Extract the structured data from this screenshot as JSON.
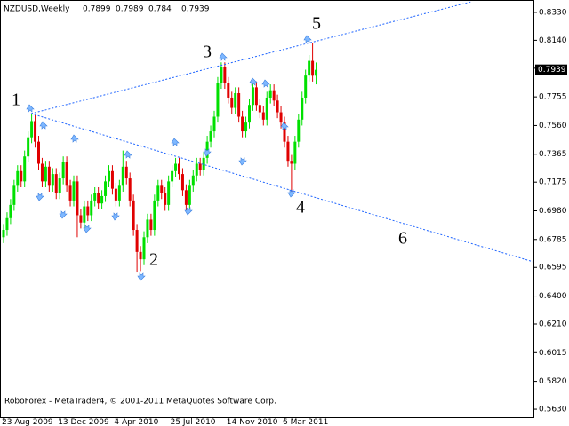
{
  "chart_data": {
    "type": "candlestick",
    "title": "NZDUSD,Weekly",
    "footer": "RoboForex - MetaTrader4, © 2001-2011 MetaQuotes Software Corp.",
    "annotations": [
      "1",
      "2",
      "3",
      "4",
      "5",
      "6"
    ],
    "current_price": 0.7939,
    "up_color": "#00e000",
    "down_color": "#e00000",
    "line_color": "#1e64ff",
    "ylim": [
      0.5576,
      0.8402
    ],
    "yticks": [
      {
        "value": 0.833,
        "label": "0.8330"
      },
      {
        "value": 0.814,
        "label": "0.8140"
      },
      {
        "value": 0.795,
        "label": "0.7950"
      },
      {
        "value": 0.7755,
        "label": "0.7755"
      },
      {
        "value": 0.756,
        "label": "0.7560"
      },
      {
        "value": 0.7365,
        "label": "0.7365"
      },
      {
        "value": 0.7175,
        "label": "0.7175"
      },
      {
        "value": 0.698,
        "label": "0.6980"
      },
      {
        "value": 0.6785,
        "label": "0.6785"
      },
      {
        "value": 0.6595,
        "label": "0.6595"
      },
      {
        "value": 0.64,
        "label": "0.6400"
      },
      {
        "value": 0.621,
        "label": "0.6210"
      },
      {
        "value": 0.6015,
        "label": "0.6015"
      },
      {
        "value": 0.582,
        "label": "0.5820"
      },
      {
        "value": 0.563,
        "label": "0.5630"
      }
    ],
    "categories": [
      "23 Aug 2009",
      null,
      null,
      null,
      null,
      null,
      null,
      null,
      null,
      null,
      null,
      null,
      null,
      null,
      null,
      null,
      "13 Dec 2009",
      null,
      null,
      null,
      null,
      null,
      null,
      null,
      null,
      null,
      null,
      null,
      null,
      null,
      null,
      null,
      "4 Apr 2010",
      null,
      null,
      null,
      null,
      null,
      null,
      null,
      null,
      null,
      null,
      null,
      null,
      null,
      null,
      null,
      "25 Jul 2010",
      null,
      null,
      null,
      null,
      null,
      null,
      null,
      null,
      null,
      null,
      null,
      null,
      null,
      null,
      null,
      "14 Nov 2010",
      null,
      null,
      null,
      null,
      null,
      null,
      null,
      null,
      null,
      null,
      null,
      null,
      null,
      null,
      null,
      "6 Mar 2011",
      null,
      null,
      null,
      null,
      null,
      null,
      null,
      null,
      null
    ],
    "open": [
      0.68,
      0.685,
      0.693,
      0.702,
      0.715,
      0.725,
      0.718,
      0.735,
      0.748,
      0.759,
      0.745,
      0.73,
      0.718,
      0.728,
      0.715,
      0.723,
      0.71,
      0.72,
      0.731,
      0.715,
      0.705,
      0.718,
      0.695,
      0.69,
      0.701,
      0.695,
      0.705,
      0.71,
      0.703,
      0.708,
      0.718,
      0.725,
      0.713,
      0.705,
      0.715,
      0.728,
      0.72,
      0.705,
      0.685,
      0.67,
      0.665,
      0.68,
      0.692,
      0.685,
      0.705,
      0.715,
      0.71,
      0.702,
      0.718,
      0.725,
      0.73,
      0.723,
      0.712,
      0.702,
      0.715,
      0.722,
      0.73,
      0.726,
      0.734,
      0.745,
      0.752,
      0.762,
      0.785,
      0.796,
      0.785,
      0.775,
      0.768,
      0.778,
      0.762,
      0.752,
      0.758,
      0.77,
      0.782,
      0.77,
      0.765,
      0.76,
      0.775,
      0.78,
      0.773,
      0.765,
      0.758,
      0.745,
      0.732,
      0.73,
      0.745,
      0.76,
      0.775,
      0.79,
      0.8,
      0.7899
    ],
    "high": [
      0.689,
      0.697,
      0.706,
      0.719,
      0.729,
      0.729,
      0.739,
      0.752,
      0.764,
      0.763,
      0.749,
      0.734,
      0.732,
      0.732,
      0.727,
      0.727,
      0.724,
      0.735,
      0.735,
      0.719,
      0.722,
      0.722,
      0.699,
      0.705,
      0.705,
      0.709,
      0.714,
      0.714,
      0.712,
      0.722,
      0.729,
      0.729,
      0.717,
      0.719,
      0.739,
      0.732,
      0.724,
      0.709,
      0.689,
      0.674,
      0.684,
      0.696,
      0.696,
      0.709,
      0.719,
      0.719,
      0.714,
      0.722,
      0.729,
      0.734,
      0.734,
      0.727,
      0.716,
      0.719,
      0.726,
      0.734,
      0.734,
      0.738,
      0.749,
      0.756,
      0.766,
      0.789,
      0.799,
      0.799,
      0.789,
      0.779,
      0.782,
      0.782,
      0.766,
      0.762,
      0.774,
      0.786,
      0.786,
      0.774,
      0.769,
      0.779,
      0.784,
      0.784,
      0.777,
      0.769,
      0.762,
      0.749,
      0.736,
      0.749,
      0.764,
      0.779,
      0.794,
      0.804,
      0.812,
      0.7989
    ],
    "low": [
      0.676,
      0.681,
      0.689,
      0.698,
      0.711,
      0.714,
      0.714,
      0.731,
      0.744,
      0.741,
      0.726,
      0.714,
      0.714,
      0.711,
      0.711,
      0.706,
      0.706,
      0.716,
      0.711,
      0.701,
      0.701,
      0.68,
      0.686,
      0.686,
      0.691,
      0.691,
      0.701,
      0.699,
      0.699,
      0.704,
      0.714,
      0.709,
      0.701,
      0.701,
      0.711,
      0.716,
      0.701,
      0.681,
      0.656,
      0.657,
      0.661,
      0.676,
      0.681,
      0.681,
      0.701,
      0.706,
      0.698,
      0.698,
      0.714,
      0.721,
      0.719,
      0.708,
      0.698,
      0.698,
      0.711,
      0.718,
      0.722,
      0.722,
      0.73,
      0.741,
      0.748,
      0.758,
      0.781,
      0.781,
      0.771,
      0.764,
      0.764,
      0.758,
      0.748,
      0.748,
      0.754,
      0.766,
      0.766,
      0.761,
      0.756,
      0.756,
      0.771,
      0.769,
      0.761,
      0.754,
      0.741,
      0.728,
      0.711,
      0.726,
      0.741,
      0.756,
      0.771,
      0.786,
      0.7859,
      0.784
    ],
    "close": [
      0.685,
      0.693,
      0.702,
      0.715,
      0.725,
      0.718,
      0.735,
      0.748,
      0.759,
      0.745,
      0.73,
      0.718,
      0.728,
      0.715,
      0.723,
      0.71,
      0.72,
      0.731,
      0.715,
      0.705,
      0.718,
      0.695,
      0.69,
      0.701,
      0.695,
      0.705,
      0.71,
      0.703,
      0.708,
      0.718,
      0.725,
      0.713,
      0.705,
      0.715,
      0.728,
      0.72,
      0.705,
      0.685,
      0.67,
      0.665,
      0.68,
      0.692,
      0.685,
      0.705,
      0.715,
      0.71,
      0.702,
      0.718,
      0.725,
      0.73,
      0.723,
      0.712,
      0.702,
      0.715,
      0.722,
      0.73,
      0.726,
      0.734,
      0.745,
      0.752,
      0.762,
      0.785,
      0.796,
      0.785,
      0.775,
      0.768,
      0.778,
      0.762,
      0.752,
      0.758,
      0.77,
      0.782,
      0.77,
      0.765,
      0.76,
      0.775,
      0.78,
      0.773,
      0.765,
      0.758,
      0.745,
      0.732,
      0.73,
      0.745,
      0.76,
      0.775,
      0.79,
      0.8,
      0.7899,
      0.7939
    ]
  }
}
